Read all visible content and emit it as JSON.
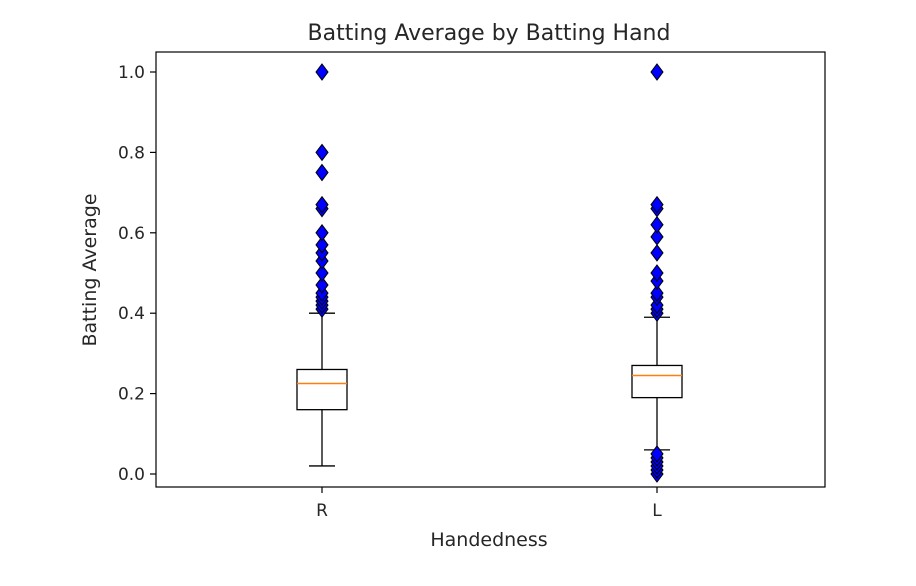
{
  "chart_data": {
    "type": "box",
    "title": "Batting Average by Batting Hand",
    "xlabel": "Handedness",
    "ylabel": "Batting Average",
    "categories": [
      "R",
      "L"
    ],
    "ylim": [
      -0.035,
      1.05
    ],
    "yticks": [
      0.0,
      0.2,
      0.4,
      0.6,
      0.8,
      1.0
    ],
    "ytick_labels": [
      "0.0",
      "0.2",
      "0.4",
      "0.6",
      "0.8",
      "1.0"
    ],
    "grid": false,
    "boxes": [
      {
        "category": "R",
        "whisker_low": 0.02,
        "q1": 0.16,
        "median": 0.225,
        "q3": 0.26,
        "whisker_high": 0.4,
        "outliers": [
          0.41,
          0.42,
          0.43,
          0.44,
          0.45,
          0.47,
          0.5,
          0.53,
          0.55,
          0.57,
          0.6,
          0.66,
          0.67,
          0.75,
          0.8,
          1.0
        ]
      },
      {
        "category": "L",
        "whisker_low": 0.06,
        "q1": 0.19,
        "median": 0.245,
        "q3": 0.27,
        "whisker_high": 0.39,
        "outliers": [
          0.0,
          0.01,
          0.02,
          0.03,
          0.04,
          0.05,
          0.4,
          0.41,
          0.42,
          0.44,
          0.45,
          0.48,
          0.5,
          0.55,
          0.59,
          0.62,
          0.66,
          0.67,
          1.0
        ]
      }
    ],
    "colors": {
      "box": "#000000",
      "median": "#ff7f0e",
      "outlier_fill": "#0000ff",
      "outlier_edge": "#000000"
    }
  }
}
